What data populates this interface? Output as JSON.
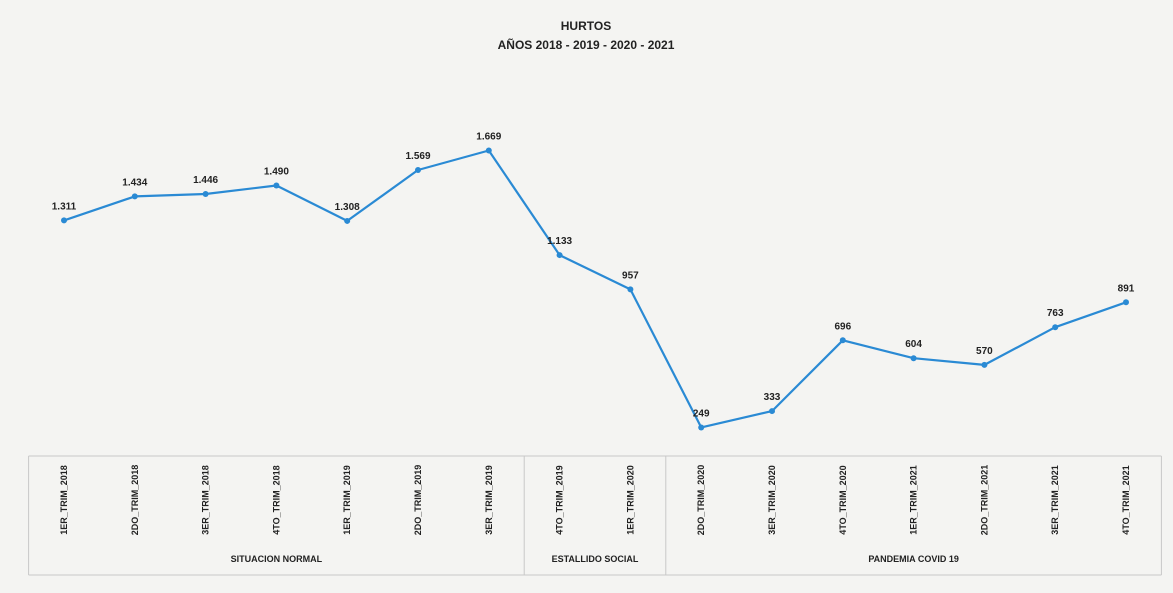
{
  "chart_data": {
    "type": "line",
    "title": "HURTOS",
    "subtitle": "AÑOS 2018 - 2019 - 2020 - 2021",
    "categories": [
      "1ER_TRIM_2018",
      "2DO_TRIM_2018",
      "3ER_TRIM_2018",
      "4TO_TRIM_2018",
      "1ER_TRIM_2019",
      "2DO_TRIM_2019",
      "3ER_TRIM_2019",
      "4TO_TRIM_2019",
      "1ER_TRIM_2020",
      "2DO_TRIM_2020",
      "3ER_TRIM_2020",
      "4TO_TRIM_2020",
      "1ER_TRIM_2021",
      "2DO_TRIM_2021",
      "3ER_TRIM_2021",
      "4TO_TRIM_2021"
    ],
    "values": [
      1311,
      1434,
      1446,
      1490,
      1308,
      1569,
      1669,
      1133,
      957,
      249,
      333,
      696,
      604,
      570,
      763,
      891
    ],
    "value_labels": [
      "1.311",
      "1.434",
      "1.446",
      "1.490",
      "1.308",
      "1.569",
      "1.669",
      "1.133",
      "957",
      "249",
      "333",
      "696",
      "604",
      "570",
      "763",
      "891"
    ],
    "groups": [
      {
        "label": "SITUACION NORMAL",
        "start": 0,
        "end": 6
      },
      {
        "label": "ESTALLIDO SOCIAL",
        "start": 7,
        "end": 8
      },
      {
        "label": "PANDEMIA COVID 19",
        "start": 9,
        "end": 15
      }
    ],
    "ylim": [
      0,
      1800
    ],
    "series_color": "#2a8ad4",
    "grid": false,
    "legend": "none"
  }
}
